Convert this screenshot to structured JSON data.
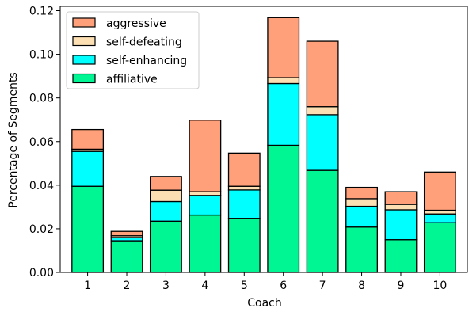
{
  "chart_data": {
    "type": "bar",
    "stacked": true,
    "xlabel": "Coach",
    "ylabel": "Percentage of Segments",
    "categories": [
      "1",
      "2",
      "3",
      "4",
      "5",
      "6",
      "7",
      "8",
      "9",
      "10"
    ],
    "ylim": [
      0,
      0.122
    ],
    "yticks": [
      "0.00",
      "0.02",
      "0.04",
      "0.06",
      "0.08",
      "0.10",
      "0.12"
    ],
    "ytick_values": [
      0,
      0.02,
      0.04,
      0.06,
      0.08,
      0.1,
      0.12
    ],
    "grid": false,
    "legend_position": "top-left",
    "series": [
      {
        "name": "affiliative",
        "color": "#00f593",
        "values": [
          0.0395,
          0.0145,
          0.0235,
          0.0263,
          0.0248,
          0.0583,
          0.0468,
          0.0208,
          0.015,
          0.0228
        ]
      },
      {
        "name": "self-enhancing",
        "color": "#00ffff",
        "values": [
          0.016,
          0.0015,
          0.009,
          0.009,
          0.013,
          0.0283,
          0.0255,
          0.0095,
          0.0137,
          0.004
        ]
      },
      {
        "name": "self-defeating",
        "color": "#fce0b4",
        "values": [
          0.001,
          0.0008,
          0.0052,
          0.0017,
          0.0017,
          0.0027,
          0.0037,
          0.0035,
          0.0025,
          0.0017
        ]
      },
      {
        "name": "aggressive",
        "color": "#ffa07a",
        "values": [
          0.009,
          0.002,
          0.0063,
          0.0328,
          0.0152,
          0.0275,
          0.03,
          0.0052,
          0.0058,
          0.0175
        ]
      }
    ],
    "legend_order": [
      "aggressive",
      "self-defeating",
      "self-enhancing",
      "affiliative"
    ]
  }
}
